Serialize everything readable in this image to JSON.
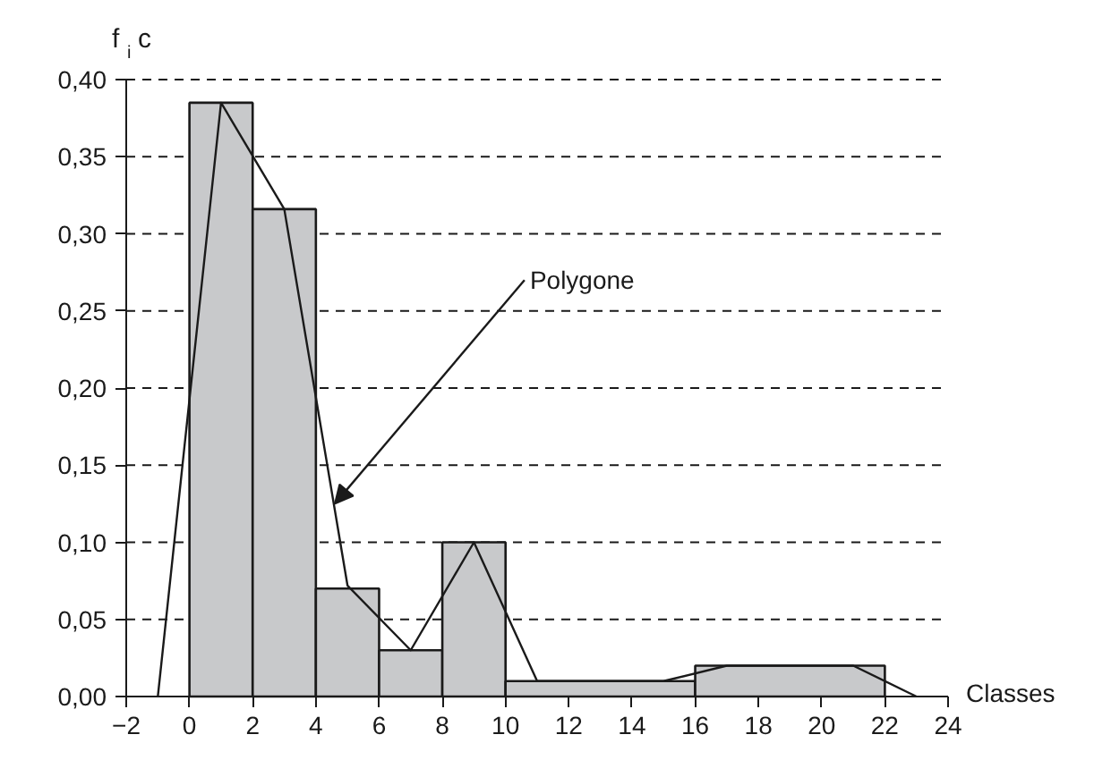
{
  "chart_data": {
    "type": "histogram",
    "xlabel": "Classes",
    "ylabel": "f$_{i}$c",
    "xlim": [
      -2,
      24
    ],
    "ylim": [
      0,
      0.4
    ],
    "xticks": [
      -2,
      0,
      2,
      4,
      6,
      8,
      10,
      12,
      14,
      16,
      18,
      20,
      22,
      24
    ],
    "yticks": [
      {
        "value": 0,
        "label": "0,00"
      },
      {
        "value": 0.05,
        "label": "0,05"
      },
      {
        "value": 0.1,
        "label": "0,10"
      },
      {
        "value": 0.15,
        "label": "0,15"
      },
      {
        "value": 0.2,
        "label": "0,20"
      },
      {
        "value": 0.25,
        "label": "0,25"
      },
      {
        "value": 0.3,
        "label": "0,30"
      },
      {
        "value": 0.35,
        "label": "0,35"
      },
      {
        "value": 0.4,
        "label": "0,40"
      }
    ],
    "grid": "y",
    "series": [
      {
        "color": "#c8c9cb",
        "bins": [
          0,
          2,
          4,
          6,
          8,
          10,
          16,
          22
        ],
        "values": [
          0.385,
          0.316,
          0.07,
          0.03,
          0.1,
          0.01,
          0.02
        ]
      },
      {
        "type": "line",
        "color": "#1a1a1a",
        "x": [
          -1,
          1,
          3,
          5,
          7,
          9,
          11,
          15,
          17,
          21,
          23
        ],
        "values": [
          0,
          0.385,
          0.316,
          0.072,
          0.03,
          0.1,
          0.01,
          0.01,
          0.02,
          0.02,
          0
        ]
      }
    ],
    "annotations": [
      {
        "text": "Polygone",
        "x": 4.6,
        "y": 0.125
      }
    ]
  }
}
